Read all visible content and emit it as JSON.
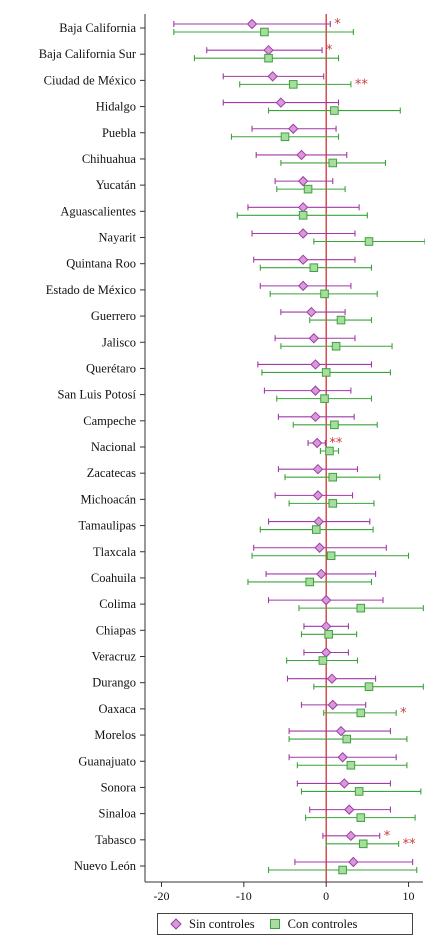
{
  "chart_data": {
    "type": "dot-and-whisker",
    "xlim": [
      -22,
      12
    ],
    "x_ticks": [
      "-20",
      "-10",
      "0",
      "10"
    ],
    "x_tick_values": [
      -20,
      -10,
      0,
      10
    ],
    "reference_line": 0,
    "grid": false,
    "legend_placement": "bottom",
    "categories": [
      "Baja California",
      "Baja California Sur",
      "Ciudad de México",
      "Hidalgo",
      "Puebla",
      "Chihuahua",
      "Yucatán",
      "Aguascalientes",
      "Nayarit",
      "Quintana Roo",
      "Estado de México",
      "Guerrero",
      "Jalisco",
      "Querétaro",
      "San Luis Potosí",
      "Campeche",
      "Nacional",
      "Zacatecas",
      "Michoacán",
      "Tamaulipas",
      "Tlaxcala",
      "Coahuila",
      "Colima",
      "Chiapas",
      "Veracruz",
      "Durango",
      "Oaxaca",
      "Morelos",
      "Guanajuato",
      "Sonora",
      "Sinaloa",
      "Tabasco",
      "Nuevo León"
    ],
    "series": [
      {
        "name": "Sin controles",
        "color": "#a13aa8",
        "marker": "diamond",
        "estimates": [
          -9.0,
          -7.0,
          -6.5,
          -5.5,
          -4.0,
          -3.0,
          -2.8,
          -2.8,
          -2.8,
          -2.8,
          -2.8,
          -1.8,
          -1.5,
          -1.3,
          -1.3,
          -1.3,
          -1.1,
          -1.0,
          -1.0,
          -0.9,
          -0.8,
          -0.6,
          0.0,
          0.0,
          0.0,
          0.7,
          0.8,
          1.8,
          2.0,
          2.2,
          2.8,
          3.0,
          3.3
        ],
        "ci_low": [
          -18.5,
          -14.5,
          -12.5,
          -12.5,
          -9.0,
          -8.5,
          -6.2,
          -9.5,
          -9.0,
          -8.8,
          -8.0,
          -5.5,
          -6.2,
          -8.3,
          -7.5,
          -5.8,
          -2.2,
          -5.8,
          -6.2,
          -7.0,
          -8.8,
          -7.3,
          -7.0,
          -2.7,
          -2.7,
          -4.7,
          -3.0,
          -4.5,
          -4.5,
          -3.5,
          -2.0,
          -0.4,
          -3.8
        ],
        "ci_high": [
          0.5,
          -0.5,
          -0.3,
          1.5,
          1.2,
          2.5,
          0.8,
          4.0,
          3.5,
          3.5,
          3.0,
          2.3,
          3.5,
          5.5,
          3.0,
          3.4,
          -0.1,
          3.8,
          3.2,
          5.3,
          7.3,
          6.0,
          6.9,
          2.7,
          2.7,
          6.0,
          4.8,
          7.8,
          8.5,
          7.8,
          7.8,
          6.5,
          10.5
        ],
        "significance": [
          "*",
          "*",
          "",
          "",
          "",
          "",
          "",
          "",
          "",
          "",
          "",
          "",
          "",
          "",
          "",
          "",
          "**",
          "",
          "",
          "",
          "",
          "",
          "",
          "",
          "",
          "",
          "",
          "",
          "",
          "",
          "",
          "*",
          ""
        ]
      },
      {
        "name": "Con controles",
        "color": "#3ca33c",
        "marker": "square",
        "estimates": [
          -7.5,
          -7.0,
          -4.0,
          1.0,
          -5.0,
          0.8,
          -2.2,
          -2.8,
          5.2,
          -1.5,
          -0.2,
          1.8,
          1.2,
          0.0,
          -0.2,
          1.0,
          0.4,
          0.8,
          0.8,
          -1.2,
          0.6,
          -2.0,
          4.2,
          0.3,
          -0.4,
          5.2,
          4.2,
          2.5,
          3.0,
          4.0,
          4.2,
          4.5,
          2.0
        ],
        "ci_low": [
          -18.5,
          -16.0,
          -10.5,
          -7.0,
          -11.5,
          -5.5,
          -6.0,
          -10.8,
          -1.5,
          -8.0,
          -6.8,
          -2.0,
          -5.5,
          -7.8,
          -6.0,
          -4.0,
          -0.7,
          -5.0,
          -4.5,
          -8.0,
          -9.0,
          -9.5,
          -3.3,
          -3.0,
          -4.8,
          -1.5,
          -0.3,
          -4.5,
          -3.5,
          -3.0,
          -2.5,
          0.0,
          -7.0
        ],
        "ci_high": [
          3.3,
          1.5,
          3.0,
          9.0,
          1.5,
          7.2,
          2.3,
          5.0,
          12.0,
          5.5,
          6.2,
          5.5,
          8.0,
          7.8,
          5.5,
          6.2,
          1.5,
          6.5,
          5.8,
          5.7,
          10.0,
          5.5,
          11.8,
          3.7,
          3.8,
          11.8,
          8.5,
          9.8,
          9.8,
          11.5,
          10.8,
          8.8,
          11.0
        ],
        "significance": [
          "",
          "",
          "**",
          "",
          "",
          "",
          "",
          "",
          "",
          "",
          "",
          "",
          "",
          "",
          "",
          "",
          "",
          "",
          "",
          "",
          "",
          "",
          "",
          "",
          "",
          "",
          "*",
          "",
          "",
          "",
          "",
          "**",
          ""
        ]
      }
    ]
  },
  "legend": {
    "items": [
      {
        "label": "Sin controles",
        "icon": "diamond-marker",
        "color": "#a13aa8"
      },
      {
        "label": "Con controles",
        "icon": "square-marker",
        "color": "#3ca33c"
      }
    ]
  }
}
